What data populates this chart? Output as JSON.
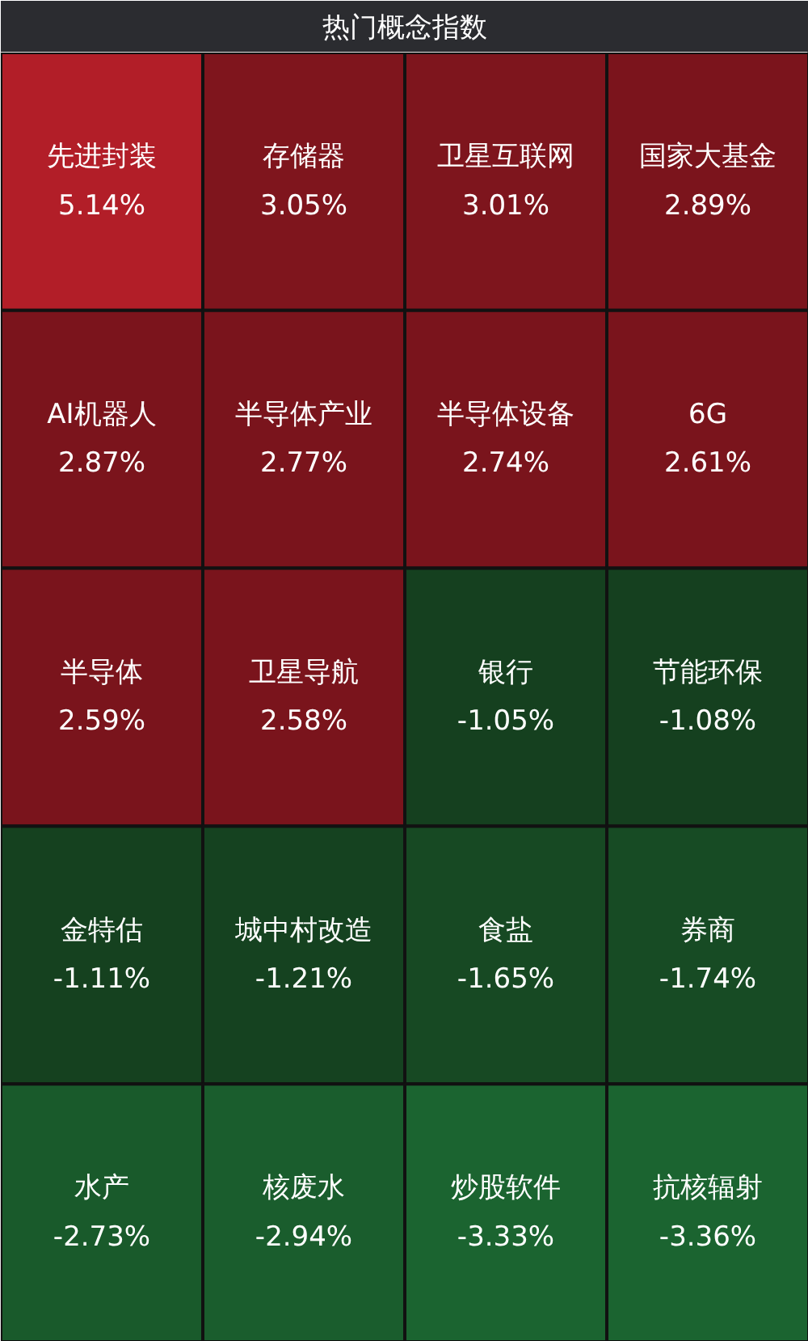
{
  "chart_data": {
    "type": "other",
    "title": "热门概念指数",
    "categories": [
      "先进封装",
      "存储器",
      "卫星互联网",
      "国家大基金",
      "AI机器人",
      "半导体产业",
      "半导体设备",
      "6G",
      "半导体",
      "卫星导航",
      "银行",
      "节能环保",
      "金特估",
      "城中村改造",
      "食盐",
      "券商",
      "水产",
      "核废水",
      "炒股软件",
      "抗核辐射"
    ],
    "values": [
      5.14,
      3.05,
      3.01,
      2.89,
      2.87,
      2.77,
      2.74,
      2.61,
      2.59,
      2.58,
      -1.05,
      -1.08,
      -1.11,
      -1.21,
      -1.65,
      -1.74,
      -2.73,
      -2.94,
      -3.33,
      -3.36
    ],
    "value_labels": [
      "5.14%",
      "3.05%",
      "3.01%",
      "2.89%",
      "2.87%",
      "2.77%",
      "2.74%",
      "2.61%",
      "2.59%",
      "2.58%",
      "-1.05%",
      "-1.08%",
      "-1.11%",
      "-1.21%",
      "-1.65%",
      "-1.74%",
      "-2.73%",
      "-2.94%",
      "-3.33%",
      "-3.36%"
    ]
  }
}
